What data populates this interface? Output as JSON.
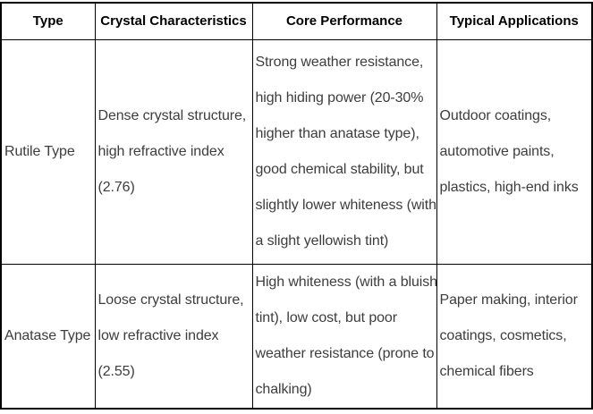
{
  "table": {
    "headers": {
      "type": "Type",
      "crystal": "Crystal Characteristics",
      "performance": "Core Performance",
      "applications": "Typical Applications"
    },
    "rows": [
      {
        "type": "Rutile Type",
        "crystal": "Dense crystal structure,\nhigh refractive index\n(2.76)",
        "performance": "Strong weather resistance,\nhigh hiding power (20-30%\nhigher than anatase type),\ngood chemical stability, but\nslightly lower whiteness (with\na slight yellowish tint)",
        "applications": "Outdoor coatings,\nautomotive paints,\nplastics, high-end inks"
      },
      {
        "type": "Anatase Type",
        "crystal": "Loose crystal structure,\nlow refractive index\n(2.55)",
        "performance": "High whiteness (with a bluish\ntint), low cost, but poor\nweather resistance (prone to\nchalking)",
        "applications": "Paper making, interior\ncoatings, cosmetics,\nchemical fibers"
      }
    ]
  },
  "colors": {
    "border": "#000000",
    "header_text": "#000000",
    "body_text": "#3d3d3d",
    "background": "#ffffff"
  }
}
